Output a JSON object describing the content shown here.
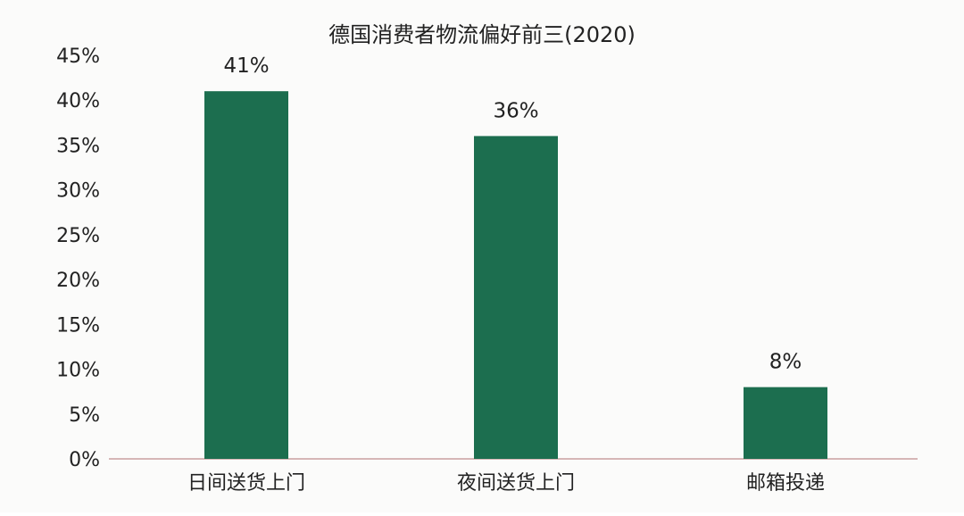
{
  "chart_data": {
    "type": "bar",
    "title": "德国消费者物流偏好前三(2020)",
    "categories": [
      "日间送货上门",
      "夜间送货上门",
      "邮箱投递"
    ],
    "values": [
      41,
      36,
      8
    ],
    "value_labels": [
      "41%",
      "36%",
      "8%"
    ],
    "ylim": [
      0,
      45
    ],
    "ytick_values": [
      0,
      5,
      10,
      15,
      20,
      25,
      30,
      35,
      40,
      45
    ],
    "ytick_labels": [
      "0%",
      "5%",
      "10%",
      "15%",
      "20%",
      "25%",
      "30%",
      "35%",
      "40%",
      "45%"
    ],
    "xlabel": "",
    "ylabel": "",
    "grid": false,
    "legend": "none",
    "colors": {
      "bar": "#1c6e4f",
      "baseline": "#c9a0a0",
      "text": "#222222"
    }
  }
}
